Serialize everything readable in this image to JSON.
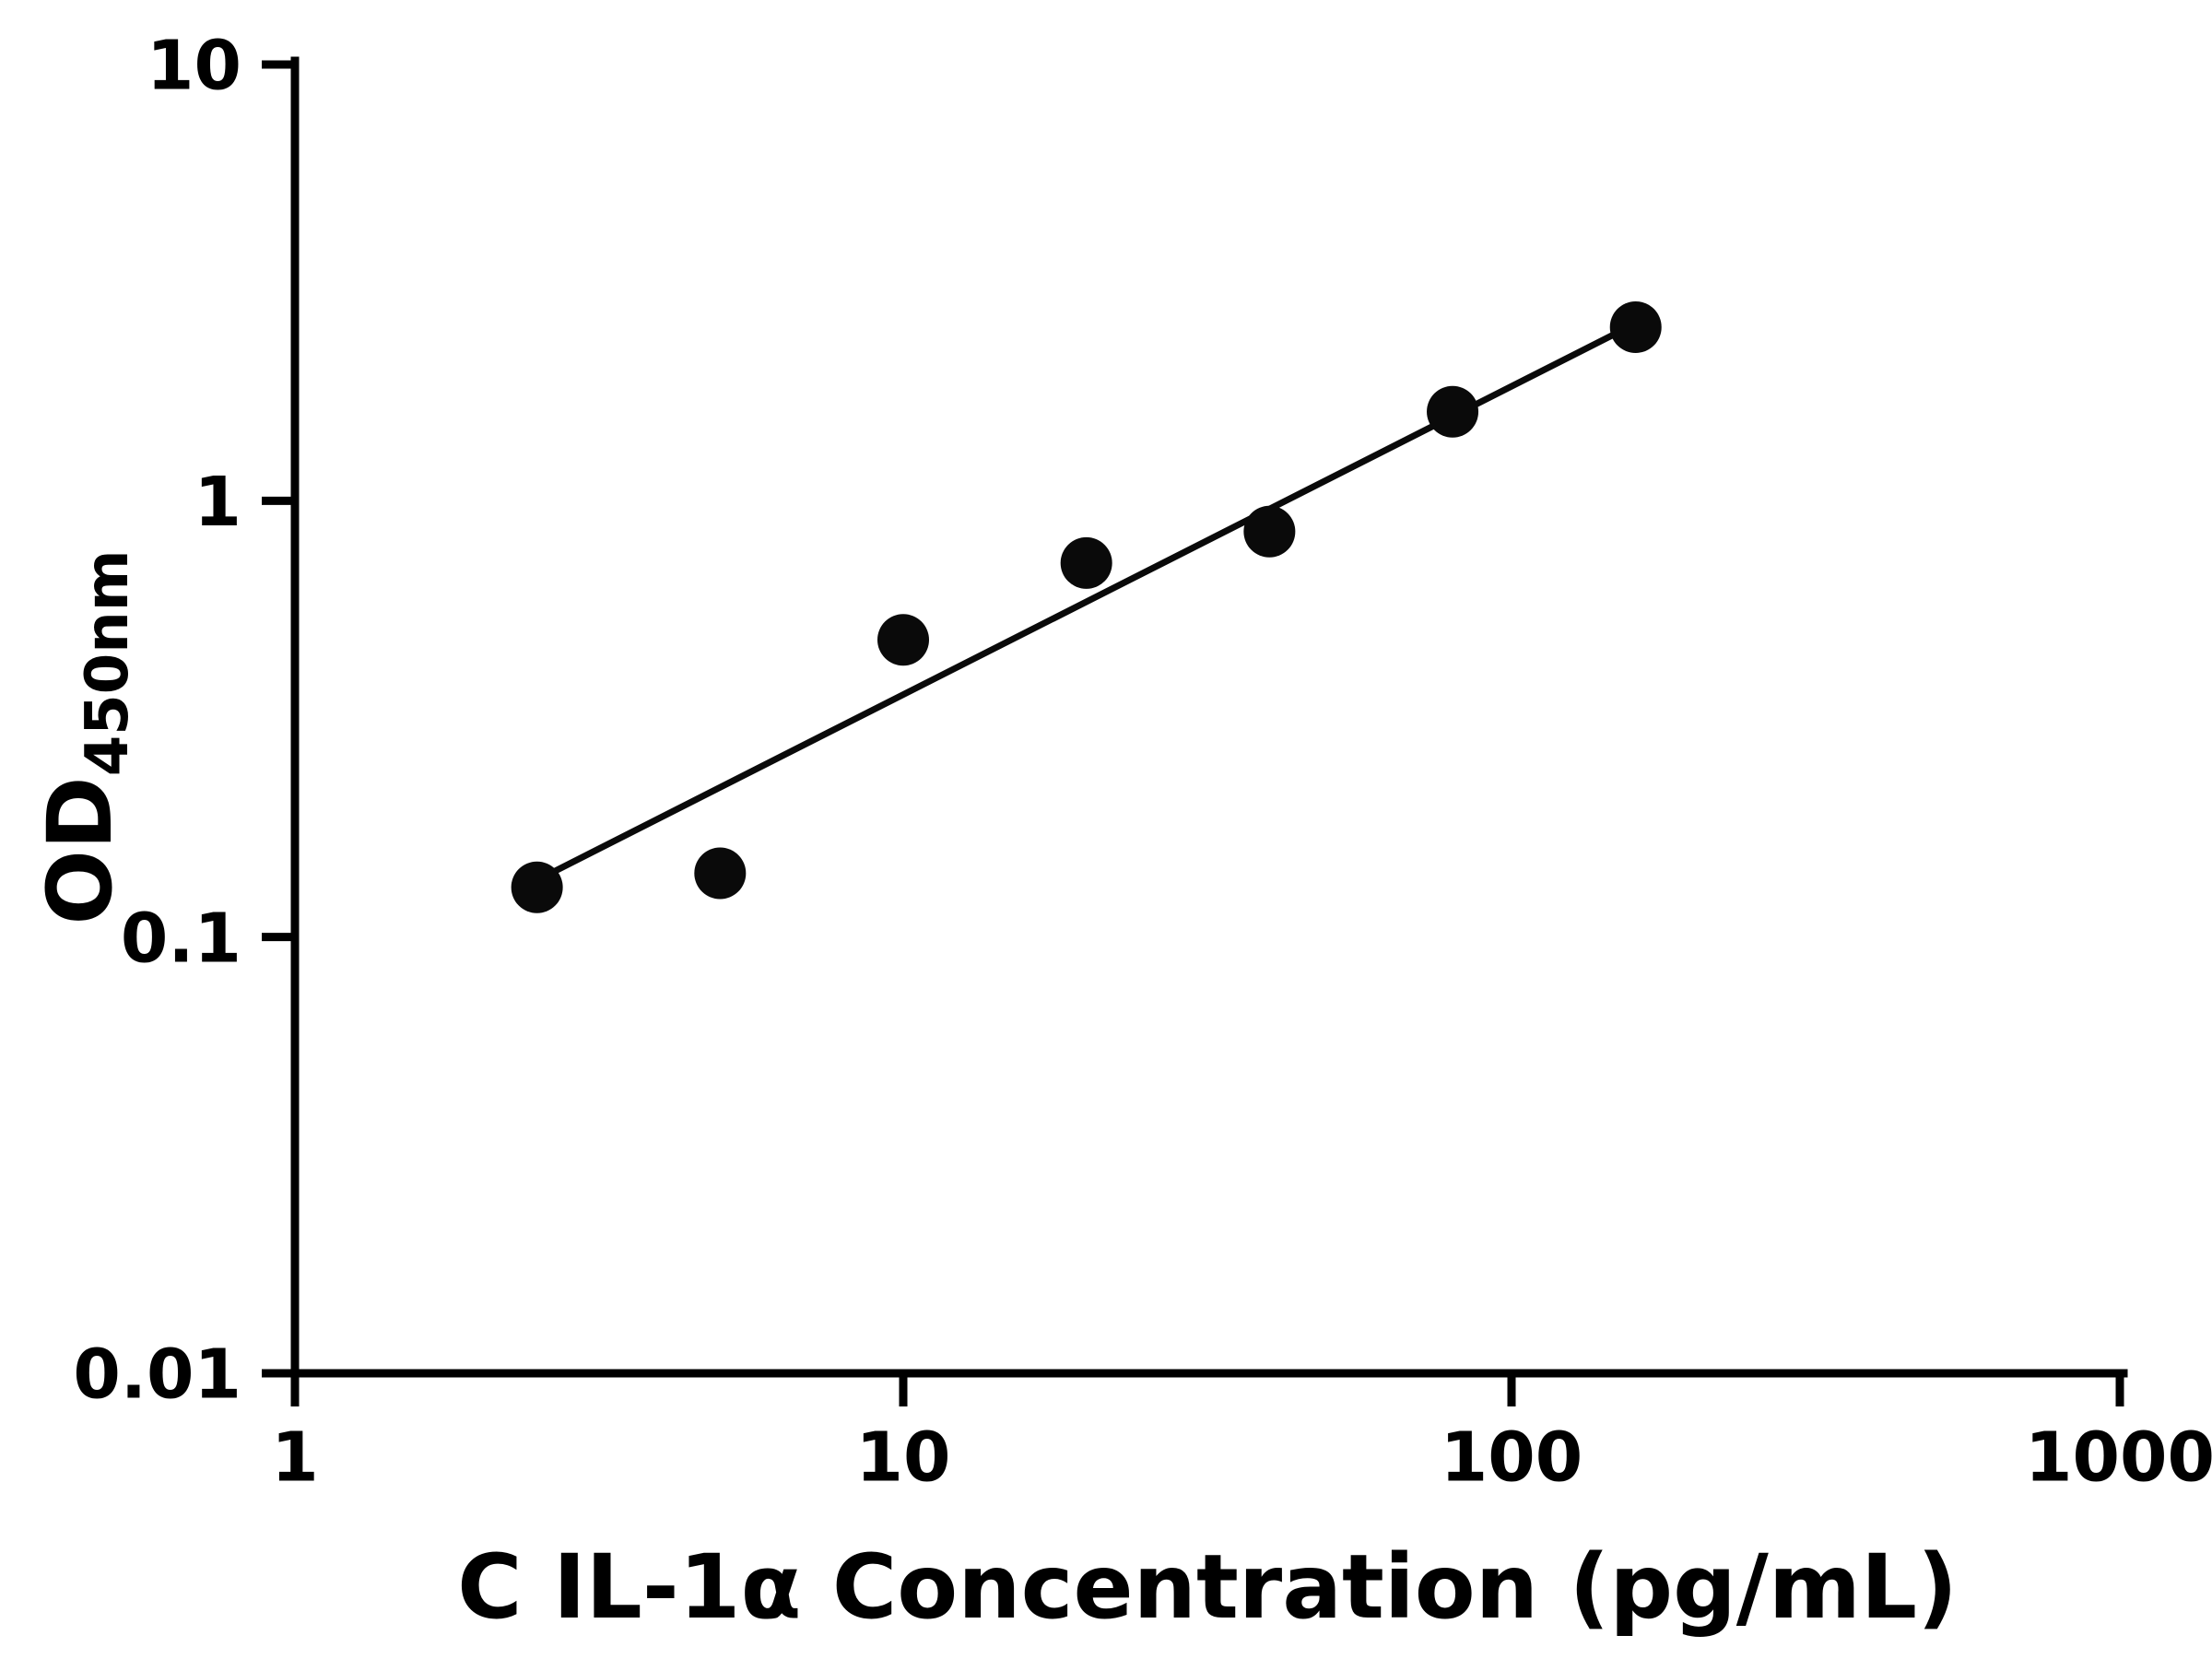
{
  "chart_data": {
    "type": "scatter",
    "title": "",
    "xlabel": "C IL-1α Concentration (pg/mL)",
    "ylabel_main": "OD",
    "ylabel_sub": "450nm",
    "x_scale": "log",
    "y_scale": "log",
    "xlim": [
      1,
      1000
    ],
    "ylim": [
      0.01,
      10
    ],
    "grid": false,
    "legend": false,
    "axis_color": "#000000",
    "marker_color": "#0a0a0a",
    "line_color": "#0a0a0a",
    "marker_radius": 28,
    "x_ticks": [
      {
        "value": 1,
        "label": "1"
      },
      {
        "value": 10,
        "label": "10"
      },
      {
        "value": 100,
        "label": "100"
      },
      {
        "value": 1000,
        "label": "1000"
      }
    ],
    "y_ticks": [
      {
        "value": 0.01,
        "label": "0.01"
      },
      {
        "value": 0.1,
        "label": "0.1"
      },
      {
        "value": 1,
        "label": "1"
      },
      {
        "value": 10,
        "label": "10"
      }
    ],
    "points": [
      {
        "x": 2.5,
        "y": 0.13
      },
      {
        "x": 5,
        "y": 0.14
      },
      {
        "x": 10,
        "y": 0.48
      },
      {
        "x": 20,
        "y": 0.72
      },
      {
        "x": 40,
        "y": 0.85
      },
      {
        "x": 80,
        "y": 1.6
      },
      {
        "x": 160,
        "y": 2.5
      }
    ],
    "trendline": {
      "x1": 2.5,
      "y1": 0.135,
      "x2": 160,
      "y2": 2.55
    }
  }
}
